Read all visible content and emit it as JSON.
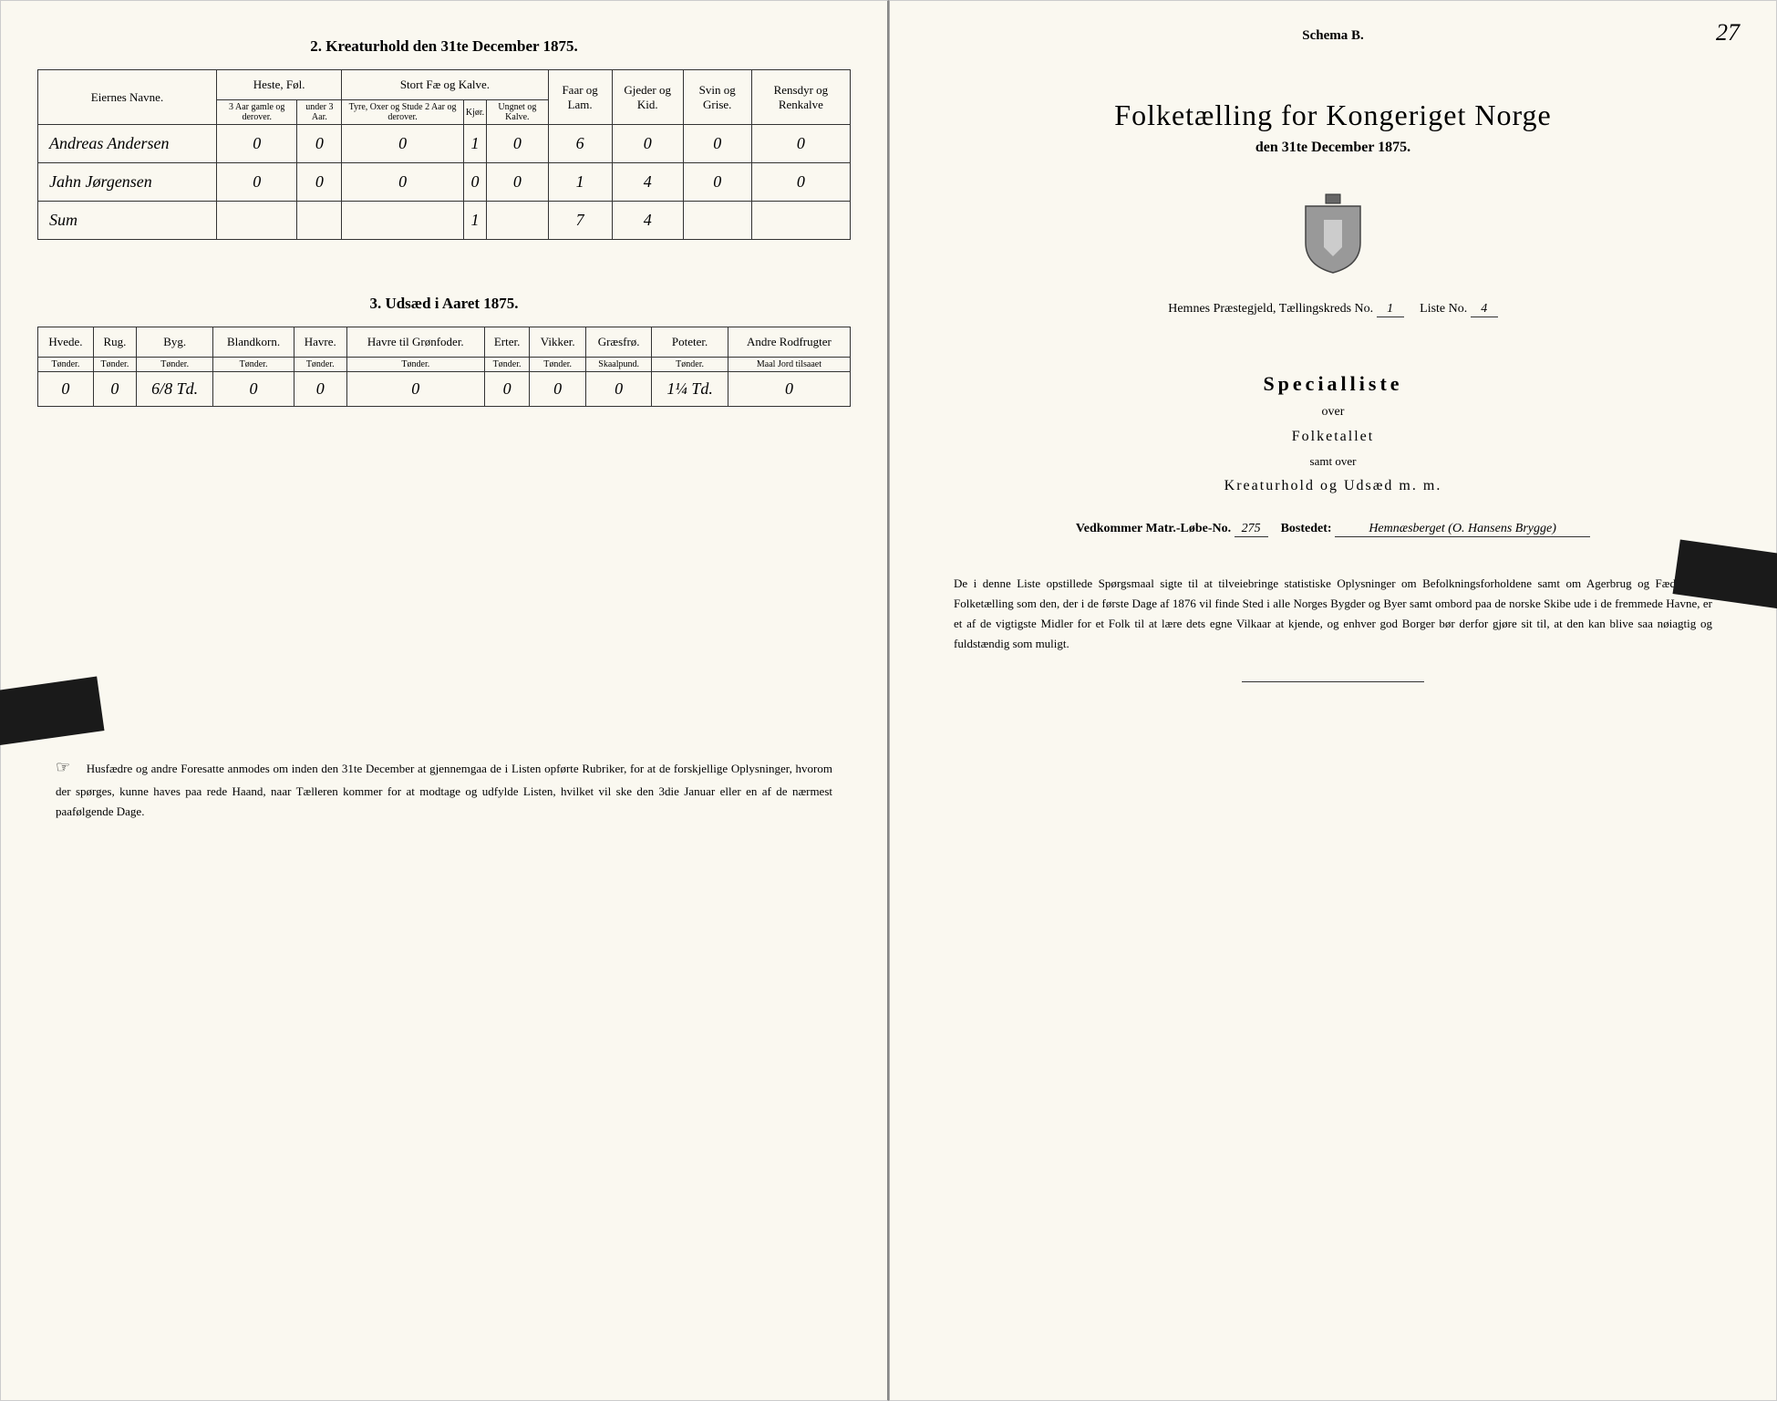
{
  "colors": {
    "paper": "#faf8f0",
    "ink": "#222222",
    "border": "#333333",
    "bg": "#1a1a1a"
  },
  "left": {
    "section2_title": "2. Kreaturhold den 31te December 1875.",
    "kreatur_headers": {
      "eier": "Eiernes Navne.",
      "heste_group": "Heste, Føl.",
      "heste_sub": [
        "3 Aar gamle og derover.",
        "under 3 Aar."
      ],
      "storfae_group": "Stort Fæ og Kalve.",
      "storfae_sub": [
        "Tyre, Oxer og Stude 2 Aar og derover.",
        "Kjør.",
        "Ungnet og Kalve."
      ],
      "faar": "Faar og Lam.",
      "gjeder": "Gjeder og Kid.",
      "svin": "Svin og Grise.",
      "rensdyr": "Rensdyr og Renkalve"
    },
    "kreatur_rows": [
      {
        "name": "Andreas Andersen",
        "v": [
          "0",
          "0",
          "0",
          "1",
          "0",
          "6",
          "0",
          "0",
          "0"
        ]
      },
      {
        "name": "Jahn Jørgensen",
        "v": [
          "0",
          "0",
          "0",
          "0",
          "0",
          "1",
          "4",
          "0",
          "0"
        ]
      },
      {
        "name": "Sum",
        "v": [
          "",
          "",
          "",
          "1",
          "",
          "7",
          "4",
          "",
          ""
        ]
      }
    ],
    "section3_title": "3. Udsæd i Aaret 1875.",
    "udsaed_headers": [
      "Hvede.",
      "Rug.",
      "Byg.",
      "Blandkorn.",
      "Havre.",
      "Havre til Grønfoder.",
      "Erter.",
      "Vikker.",
      "Græsfrø.",
      "Poteter.",
      "Andre Rodfrugter"
    ],
    "udsaed_units": [
      "Tønder.",
      "Tønder.",
      "Tønder.",
      "Tønder.",
      "Tønder.",
      "Tønder.",
      "Tønder.",
      "Tønder.",
      "Skaalpund.",
      "Tønder.",
      "Maal Jord tilsaaet"
    ],
    "udsaed_row": [
      "0",
      "0",
      "6/8 Td.",
      "0",
      "0",
      "0",
      "0",
      "0",
      "0",
      "1¼ Td.",
      "0"
    ],
    "footer_text": "Husfædre og andre Foresatte anmodes om inden den 31te December at gjennemgaa de i Listen opførte Rubriker, for at de forskjellige Oplysninger, hvorom der spørges, kunne haves paa rede Haand, naar Tælleren kommer for at modtage og udfylde Listen, hvilket vil ske den 3die Januar eller en af de nærmest paafølgende Dage."
  },
  "right": {
    "schema": "Schema B.",
    "page_num": "27",
    "main_title": "Folketælling for Kongeriget Norge",
    "date_line": "den 31te December 1875.",
    "praestegjeld_label": "Hemnes Præstegjeld, Tællingskreds No.",
    "kreds_no": "1",
    "liste_label": "Liste No.",
    "liste_no": "4",
    "special_title": "Specialliste",
    "over": "over",
    "folketallet": "Folketallet",
    "samt_over": "samt over",
    "kreatur_line": "Kreaturhold og Udsæd m. m.",
    "vedkommer_label": "Vedkommer Matr.-Løbe-No.",
    "matr_no": "275",
    "bostedet_label": "Bostedet:",
    "bostedet": "Hemnæsberget (O. Hansens Brygge)",
    "bottom_para": "De i denne Liste opstillede Spørgsmaal sigte til at tilveiebringe statistiske Oplysninger om Befolkningsforholdene samt om Agerbrug og Fædrift. En Folketælling som den, der i de første Dage af 1876 vil finde Sted i alle Norges Bygder og Byer samt ombord paa de norske Skibe ude i de fremmede Havne, er et af de vigtigste Midler for et Folk til at lære dets egne Vilkaar at kjende, og enhver god Borger bør derfor gjøre sit til, at den kan blive saa nøiagtig og fuldstændig som muligt."
  }
}
